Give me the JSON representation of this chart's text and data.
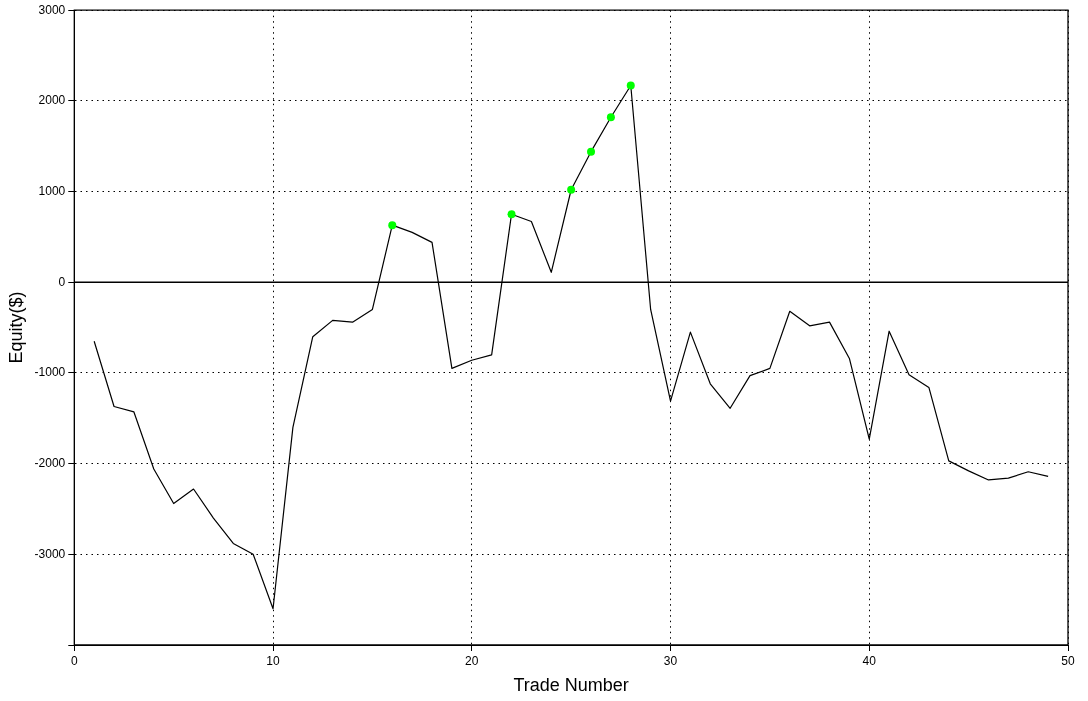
{
  "chart_data": {
    "type": "line",
    "xlabel": "Trade Number",
    "ylabel": "Equity($)",
    "xlim": [
      0,
      50
    ],
    "xticks": [
      0,
      10,
      20,
      30,
      40,
      50
    ],
    "ylim": [
      -4000,
      3000
    ],
    "yticks": [
      3000,
      2000,
      1000,
      0,
      -1000,
      -2000,
      -3000,
      {
        "value": -4000,
        "label": null
      }
    ],
    "grid": true,
    "legend": false,
    "ref_lines": [
      {
        "axis": "y",
        "value": 0,
        "color": "#000000"
      }
    ],
    "series": [
      {
        "color": "#000000",
        "marker": "none",
        "line_style": "solid",
        "x": [
          1,
          2,
          3,
          4,
          5,
          6,
          7,
          8,
          9,
          10,
          11,
          12,
          13,
          14,
          15,
          16,
          17,
          18,
          19,
          20,
          21,
          22,
          23,
          24,
          25,
          26,
          27,
          28,
          29,
          30,
          31,
          32,
          33,
          34,
          35,
          36,
          37,
          38,
          39,
          40,
          41,
          42,
          43,
          44,
          45,
          46,
          47,
          48,
          49
        ],
        "values": [
          -650,
          -1370,
          -1430,
          -2060,
          -2440,
          -2280,
          -2600,
          -2880,
          -3000,
          -3600,
          -1600,
          -600,
          -420,
          -440,
          -300,
          630,
          550,
          440,
          -950,
          -860,
          -800,
          750,
          670,
          110,
          1020,
          1440,
          1820,
          2170,
          -300,
          -1310,
          -550,
          -1120,
          -1390,
          -1030,
          -950,
          -320,
          -480,
          -440,
          -840,
          -1730,
          -540,
          -1020,
          -1160,
          -1970,
          -2080,
          -2180,
          -2160,
          -2090,
          -2140
        ]
      },
      {
        "type": "scatter",
        "color": "#00ff00",
        "marker": "circle",
        "x": [
          16,
          22,
          25,
          26,
          27,
          28
        ],
        "values": [
          630,
          750,
          1020,
          1440,
          1820,
          2170
        ]
      }
    ]
  }
}
